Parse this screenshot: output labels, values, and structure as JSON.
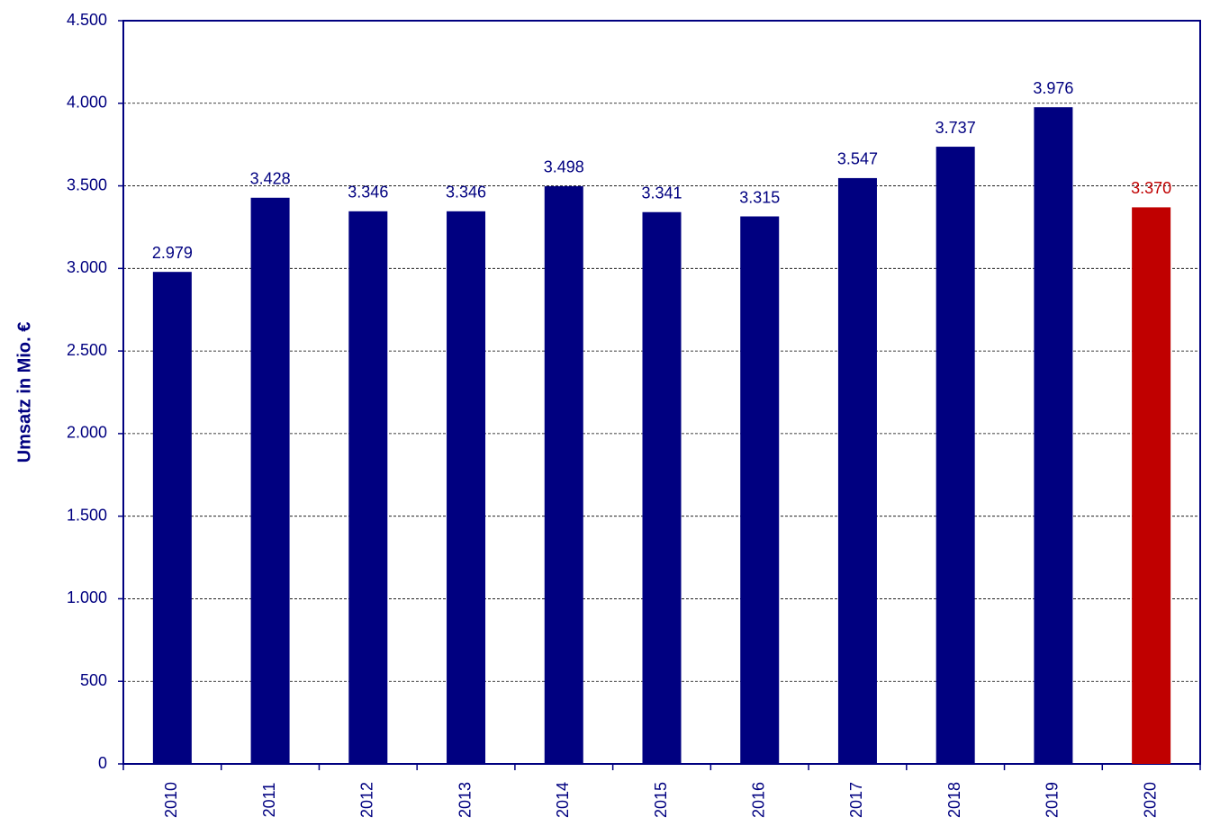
{
  "chart_data": {
    "type": "bar",
    "y_label": "Umsatz in Mio. €",
    "categories": [
      "2010",
      "2011",
      "2012",
      "2013",
      "2014",
      "2015",
      "2016",
      "2017",
      "2018",
      "2019",
      "2020"
    ],
    "values": [
      2979,
      3428,
      3346,
      3346,
      3498,
      3341,
      3315,
      3547,
      3737,
      3976,
      3370
    ],
    "value_labels": [
      "2.979",
      "3.428",
      "3.346",
      "3.346",
      "3.498",
      "3.341",
      "3.315",
      "3.547",
      "3.737",
      "3.976",
      "3.370"
    ],
    "colors": [
      "#000080",
      "#000080",
      "#000080",
      "#000080",
      "#000080",
      "#000080",
      "#000080",
      "#000080",
      "#000080",
      "#000080",
      "#c00000"
    ],
    "ylim": [
      0,
      4500
    ],
    "yticks": [
      0,
      500,
      {
        "value": 1000,
        "label": "1.000"
      },
      {
        "value": 1500,
        "label": "1.500"
      },
      {
        "value": 2000,
        "label": "2.000"
      },
      {
        "value": 2500,
        "label": "2.500"
      },
      {
        "value": 3000,
        "label": "3.000"
      },
      {
        "value": 3500,
        "label": "3.500"
      },
      {
        "value": 4000,
        "label": "4.000"
      },
      {
        "value": 4500,
        "label": "4.500"
      }
    ],
    "grid": true
  }
}
